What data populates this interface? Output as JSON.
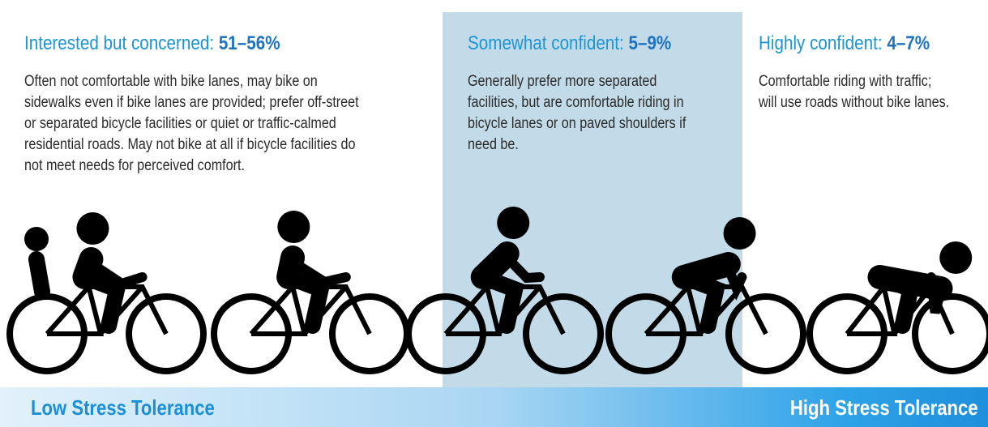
{
  "groups": [
    {
      "label": "Interested but concerned:",
      "share": "51–56%",
      "lines": [
        "Often not comfortable with bike lanes, may bike on",
        "sidewalks even if bike lanes are provided; prefer off-street",
        "or separated bicycle facilities or quiet or traffic-calmed",
        "residential roads. May not bike at all if bicycle facilities do",
        "not meet needs for perceived comfort."
      ]
    },
    {
      "label": "Somewhat confident:",
      "share": "5–9%",
      "lines": [
        "Generally prefer more separated",
        "facilities, but are comfortable riding in",
        "bicycle lanes or on paved shoulders if",
        "need be."
      ]
    },
    {
      "label": "Highly confident:",
      "share": "4–7%",
      "lines": [
        "Comfortable riding with traffic;",
        "will use roads without bike lanes."
      ]
    }
  ],
  "scale": {
    "low": "Low Stress Tolerance",
    "high": "High Stress Tolerance"
  }
}
